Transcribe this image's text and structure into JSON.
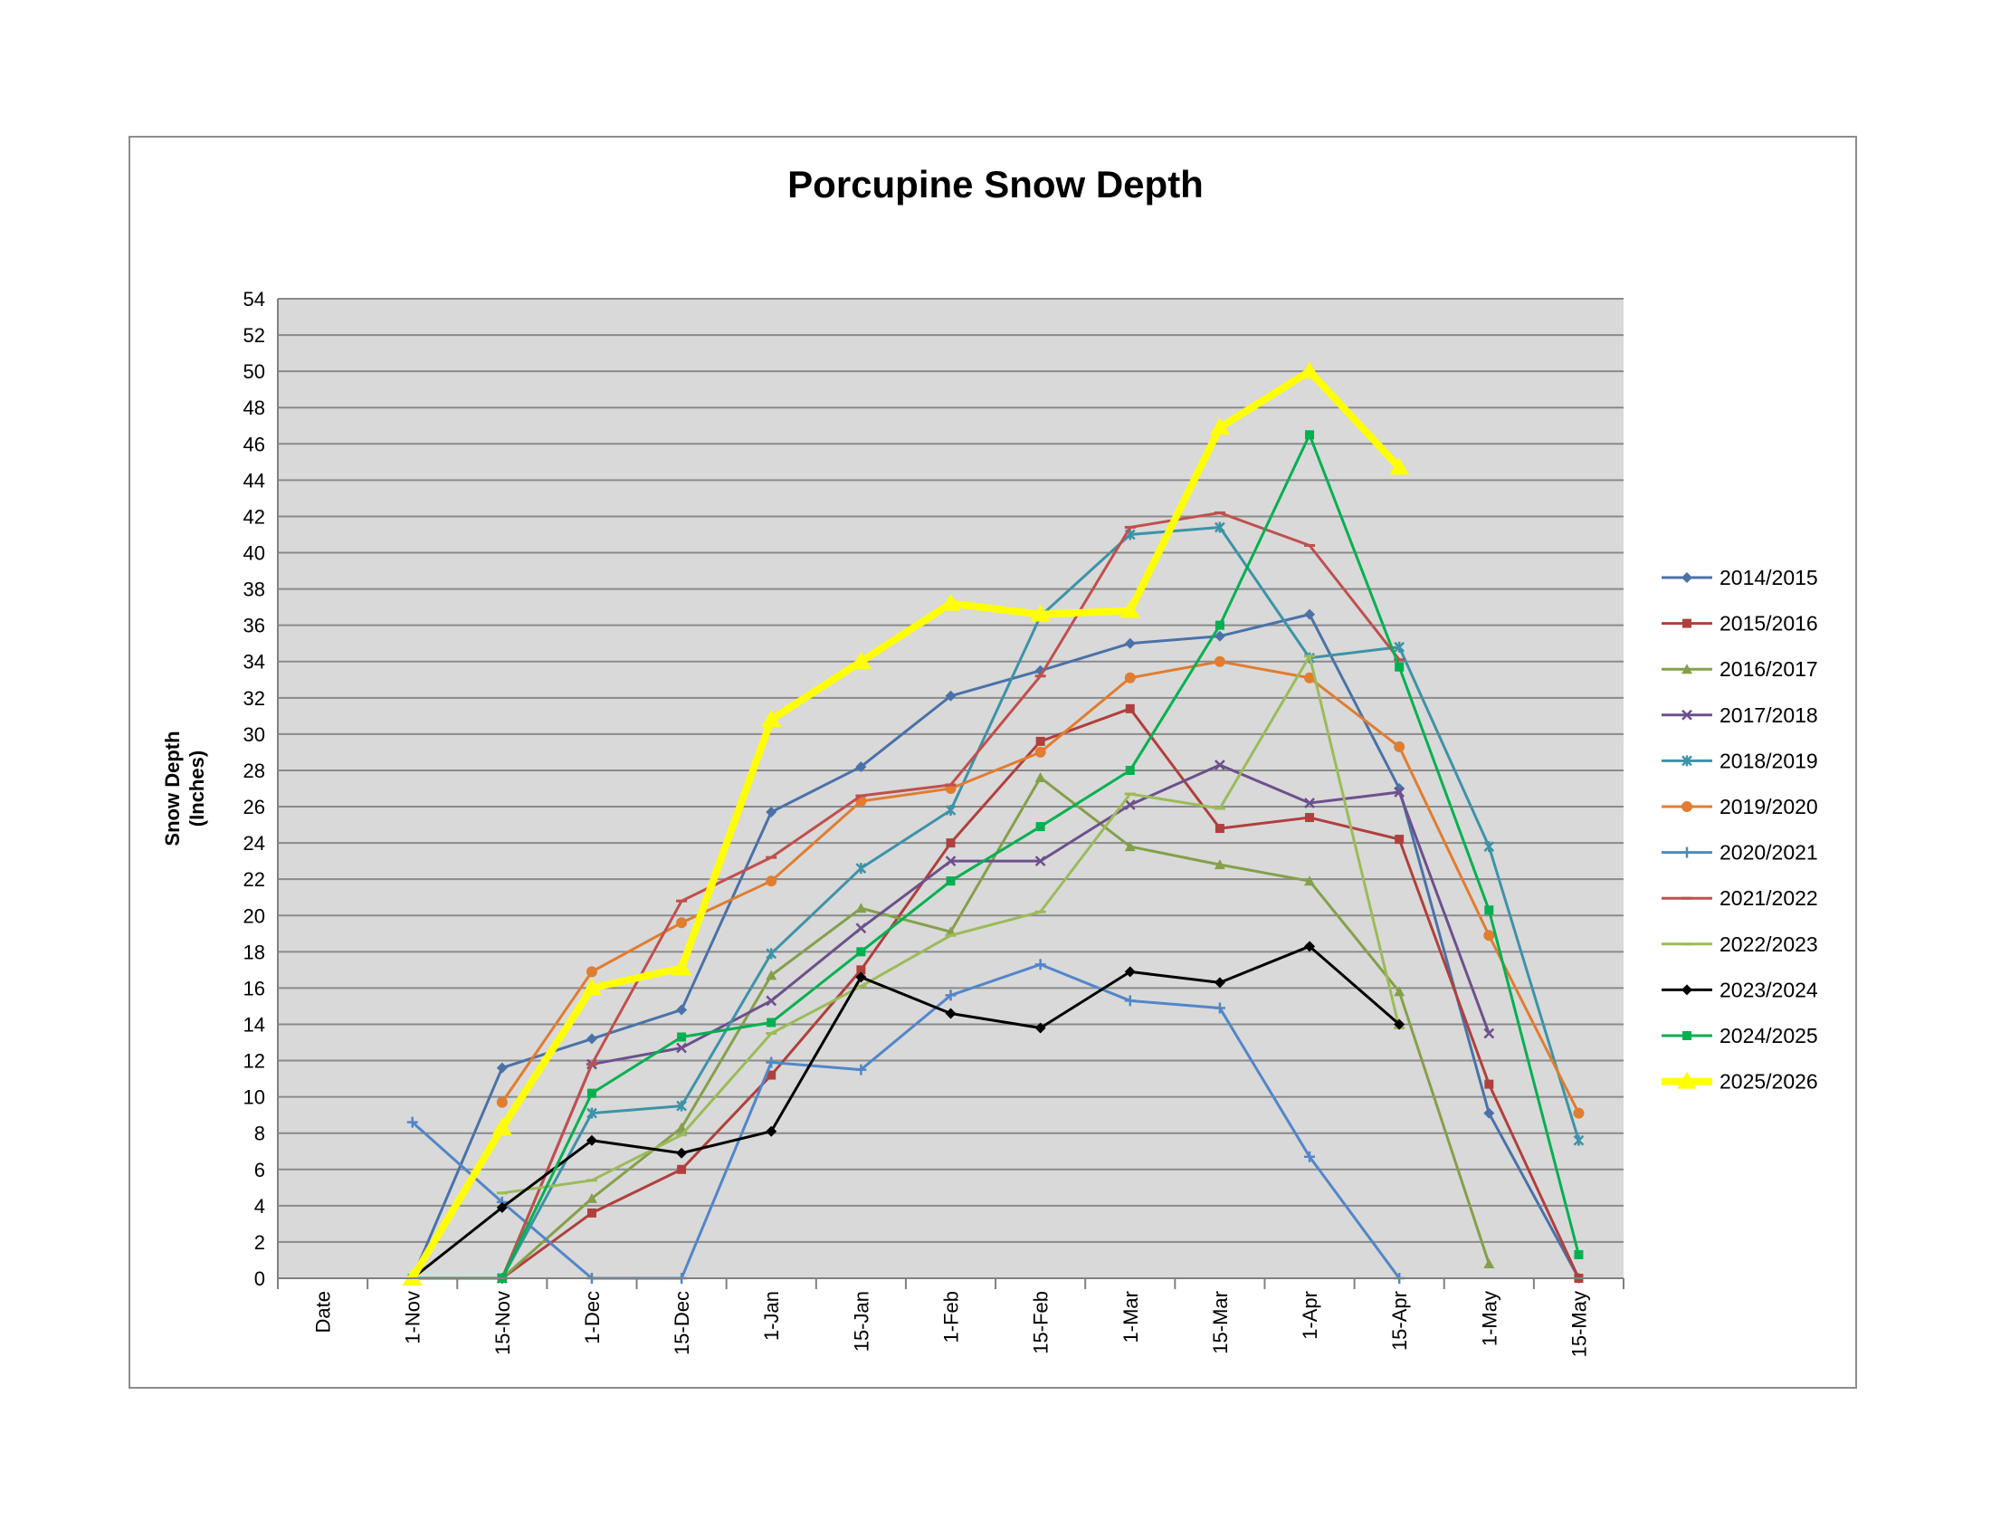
{
  "chart_data": {
    "type": "line",
    "title": "Porcupine Snow Depth",
    "ylabel": "Snow Depth\n(Inches)",
    "xlabel": "",
    "ylim": [
      0,
      54
    ],
    "ytick_step": 2,
    "grid": true,
    "legend_position": "right",
    "categories": [
      "Date",
      "1-Nov",
      "15-Nov",
      "1-Dec",
      "15-Dec",
      "1-Jan",
      "15-Jan",
      "1-Feb",
      "15-Feb",
      "1-Mar",
      "15-Mar",
      "1-Apr",
      "15-Apr",
      "1-May",
      "15-May"
    ],
    "series": [
      {
        "name": "2014/2015",
        "color": "#4a72a8",
        "marker": "diamond",
        "values": [
          null,
          0,
          11.6,
          13.2,
          14.8,
          25.7,
          28.2,
          32.1,
          33.5,
          35,
          35.4,
          36.6,
          27,
          9.1,
          0
        ]
      },
      {
        "name": "2015/2016",
        "color": "#b0403d",
        "marker": "square",
        "values": [
          null,
          null,
          0,
          3.6,
          6,
          11.2,
          17,
          24,
          29.6,
          31.4,
          24.8,
          25.4,
          24.2,
          10.7,
          0
        ]
      },
      {
        "name": "2016/2017",
        "color": "#84a04a",
        "marker": "triangle",
        "values": [
          null,
          null,
          0,
          4.4,
          8.3,
          16.7,
          20.4,
          19.1,
          27.6,
          23.8,
          22.8,
          21.9,
          15.8,
          0.8,
          null
        ]
      },
      {
        "name": "2017/2018",
        "color": "#6d508c",
        "marker": "x",
        "values": [
          null,
          null,
          0,
          11.8,
          12.7,
          15.3,
          19.3,
          23,
          23,
          26.1,
          28.3,
          26.2,
          26.8,
          13.5,
          null
        ]
      },
      {
        "name": "2018/2019",
        "color": "#3d93a7",
        "marker": "star",
        "values": [
          null,
          null,
          0,
          9.1,
          9.5,
          17.9,
          22.6,
          25.8,
          36.5,
          41,
          41.4,
          34.2,
          34.8,
          23.8,
          7.6
        ]
      },
      {
        "name": "2019/2020",
        "color": "#e07d30",
        "marker": "circle",
        "values": [
          null,
          null,
          9.7,
          16.9,
          19.6,
          21.9,
          26.3,
          27,
          29,
          33.1,
          34,
          33.1,
          29.3,
          18.9,
          9.1
        ]
      },
      {
        "name": "2020/2021",
        "color": "#5286c8",
        "marker": "plus",
        "values": [
          null,
          8.6,
          4.2,
          0,
          0,
          11.9,
          11.5,
          15.6,
          17.3,
          15.3,
          14.9,
          6.7,
          0,
          null,
          null
        ]
      },
      {
        "name": "2021/2022",
        "color": "#c0504d",
        "marker": "dash",
        "values": [
          null,
          null,
          0,
          11.8,
          20.8,
          23.2,
          26.6,
          27.2,
          33.2,
          41.4,
          42.2,
          40.4,
          34.1,
          null,
          null
        ]
      },
      {
        "name": "2022/2023",
        "color": "#9bbb59",
        "marker": "dash",
        "values": [
          null,
          null,
          4.7,
          5.4,
          7.9,
          13.5,
          16.1,
          18.9,
          20.2,
          26.7,
          25.9,
          34.3,
          13.8,
          null,
          null
        ]
      },
      {
        "name": "2023/2024",
        "color": "#000000",
        "marker": "diamond",
        "values": [
          null,
          0,
          3.9,
          7.6,
          6.9,
          8.1,
          16.6,
          14.6,
          13.8,
          16.9,
          16.3,
          18.3,
          14,
          null,
          null
        ]
      },
      {
        "name": "2024/2025",
        "color": "#00b050",
        "marker": "square",
        "values": [
          null,
          0,
          0,
          10.2,
          13.3,
          14.1,
          18,
          21.9,
          24.9,
          28,
          36,
          46.5,
          33.7,
          20.3,
          1.3
        ]
      },
      {
        "name": "2025/2026",
        "color": "#ffff00",
        "marker": "triangle-big",
        "values": [
          null,
          0,
          8.3,
          16,
          17.1,
          30.8,
          34,
          37.2,
          36.6,
          36.8,
          46.9,
          50,
          44.7,
          null,
          null
        ]
      }
    ]
  }
}
